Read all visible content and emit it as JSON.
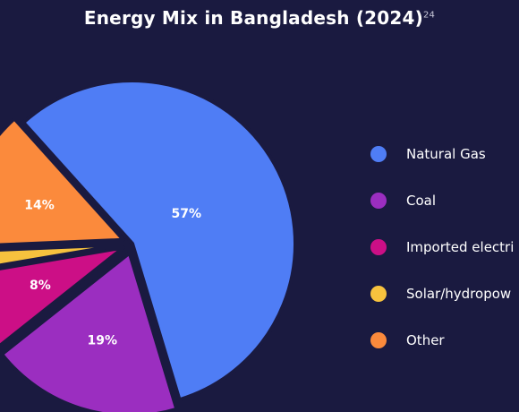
{
  "chart_data": {
    "type": "pie",
    "title": "Energy Mix in Bangladesh (2024)",
    "title_footnote": "24",
    "unit": "%",
    "slices": [
      {
        "name": "Natural Gas",
        "value": 57,
        "label": "57%",
        "color": "#4f7df5"
      },
      {
        "name": "Coal",
        "value": 19,
        "label": "19%",
        "color": "#9b2ec0"
      },
      {
        "name": "Imported electricity",
        "value": 8,
        "label": "8%",
        "color": "#cc0f86"
      },
      {
        "name": "Solar/hydropower",
        "value": 2,
        "label": "2%",
        "color": "#f7c23e"
      },
      {
        "name": "Other",
        "value": 14,
        "label": "14%",
        "color": "#fb8a3c"
      }
    ],
    "legend_position": "right",
    "legend_labels_visible": [
      "Natural Gas",
      "Coal",
      "Imported electri",
      "Solar/hydropow",
      "Other"
    ]
  }
}
